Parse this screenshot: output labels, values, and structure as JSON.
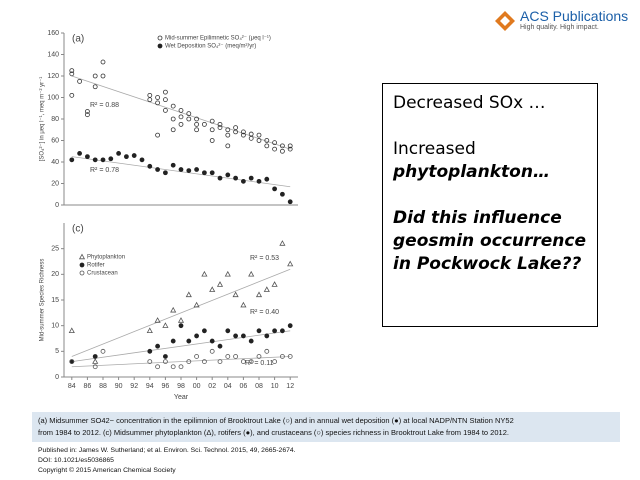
{
  "chart_data": [
    {
      "type": "scatter",
      "panel": "(a)",
      "ylabel": "[SO₄²⁻] in μeq l⁻¹, meq m⁻² yr⁻¹",
      "xlim": [
        1983,
        2013
      ],
      "ylim": [
        0,
        160
      ],
      "yticks": [
        0,
        20,
        40,
        60,
        80,
        100,
        120,
        140,
        160
      ],
      "series": [
        {
          "name": "Mid-summer Epilimnetic SO₄²⁻ (μeq l⁻¹)",
          "marker": "open-circle",
          "color": "#333333",
          "x": [
            1984,
            1984,
            1984,
            1985,
            1986,
            1986,
            1987,
            1987,
            1988,
            1988,
            1994,
            1994,
            1995,
            1995,
            1995,
            1996,
            1996,
            1996,
            1997,
            1997,
            1997,
            1998,
            1998,
            1998,
            1999,
            1999,
            2000,
            2000,
            2000,
            2001,
            2002,
            2002,
            2002,
            2003,
            2003,
            2004,
            2004,
            2004,
            2005,
            2005,
            2006,
            2006,
            2007,
            2007,
            2008,
            2008,
            2009,
            2009,
            2010,
            2010,
            2011,
            2011,
            2012,
            2012
          ],
          "values": [
            125,
            122,
            102,
            115,
            87,
            84,
            110,
            120,
            133,
            120,
            102,
            98,
            100,
            95,
            65,
            105,
            98,
            88,
            92,
            80,
            70,
            88,
            82,
            75,
            85,
            80,
            80,
            75,
            70,
            75,
            78,
            70,
            60,
            75,
            72,
            70,
            65,
            55,
            72,
            68,
            68,
            65,
            66,
            62,
            65,
            60,
            60,
            55,
            58,
            52,
            55,
            50,
            52,
            55
          ]
        },
        {
          "name": "Wet Deposition SO₄²⁻ (meq/m²/yr)",
          "marker": "filled-circle",
          "color": "#222222",
          "x": [
            1984,
            1985,
            1986,
            1987,
            1988,
            1989,
            1990,
            1991,
            1992,
            1993,
            1994,
            1995,
            1996,
            1997,
            1998,
            1999,
            2000,
            2001,
            2002,
            2003,
            2004,
            2005,
            2006,
            2007,
            2008,
            2009,
            2010,
            2011,
            2012
          ],
          "values": [
            42,
            48,
            45,
            42,
            42,
            43,
            48,
            45,
            46,
            42,
            36,
            33,
            30,
            37,
            33,
            32,
            33,
            30,
            30,
            25,
            28,
            25,
            22,
            25,
            22,
            24,
            15,
            10,
            3
          ]
        }
      ],
      "trend_lines": [
        {
          "x": [
            1984,
            2012
          ],
          "values": [
            120,
            52
          ]
        },
        {
          "x": [
            1984,
            2012
          ],
          "values": [
            45,
            17
          ]
        }
      ],
      "annotations": [
        "R² = 0.88",
        "R² = 0.78"
      ]
    },
    {
      "type": "scatter",
      "panel": "(c)",
      "ylabel": "Mid-summer Species Richness",
      "xlabel": "Year",
      "xlim": [
        1983,
        2013
      ],
      "ylim": [
        0,
        30
      ],
      "yticks": [
        0,
        5,
        10,
        15,
        20,
        25
      ],
      "xticks": [
        {
          "value": 1984,
          "label": "84"
        },
        {
          "value": 1986,
          "label": "86"
        },
        {
          "value": 1988,
          "label": "88"
        },
        {
          "value": 1990,
          "label": "90"
        },
        {
          "value": 1992,
          "label": "92"
        },
        {
          "value": 1994,
          "label": "94"
        },
        {
          "value": 1996,
          "label": "96"
        },
        {
          "value": 1998,
          "label": "98"
        },
        {
          "value": 2000,
          "label": "00"
        },
        {
          "value": 2002,
          "label": "02"
        },
        {
          "value": 2004,
          "label": "04"
        },
        {
          "value": 2006,
          "label": "06"
        },
        {
          "value": 2008,
          "label": "08"
        },
        {
          "value": 2010,
          "label": "10"
        },
        {
          "value": 2012,
          "label": "12"
        }
      ],
      "series": [
        {
          "name": "Phytoplankton",
          "marker": "open-triangle",
          "color": "#555555",
          "x": [
            1984,
            1987,
            1994,
            1995,
            1996,
            1997,
            1998,
            1999,
            2000,
            2001,
            2002,
            2003,
            2004,
            2005,
            2006,
            2007,
            2008,
            2009,
            2010,
            2011,
            2012
          ],
          "values": [
            9,
            3,
            9,
            11,
            10,
            13,
            11,
            16,
            14,
            20,
            17,
            18,
            20,
            16,
            14,
            20,
            16,
            17,
            18,
            26,
            22
          ]
        },
        {
          "name": "Rotifer",
          "marker": "filled-circle",
          "color": "#222222",
          "x": [
            1984,
            1987,
            1994,
            1995,
            1996,
            1997,
            1998,
            1999,
            2000,
            2001,
            2002,
            2003,
            2004,
            2005,
            2006,
            2007,
            2008,
            2009,
            2010,
            2011,
            2012
          ],
          "values": [
            3,
            4,
            5,
            6,
            4,
            7,
            10,
            7,
            8,
            9,
            7,
            6,
            9,
            8,
            8,
            7,
            9,
            8,
            9,
            9,
            10
          ]
        },
        {
          "name": "Crustacean",
          "marker": "open-circle",
          "color": "#555555",
          "x": [
            1984,
            1987,
            1988,
            1994,
            1995,
            1996,
            1997,
            1998,
            1999,
            2000,
            2001,
            2002,
            2003,
            2004,
            2005,
            2006,
            2007,
            2008,
            2009,
            2010,
            2011,
            2012
          ],
          "values": [
            3,
            2,
            5,
            3,
            2,
            3,
            2,
            2,
            3,
            4,
            3,
            5,
            3,
            4,
            4,
            3,
            3,
            4,
            5,
            3,
            4,
            4
          ]
        }
      ],
      "trend_lines": [
        {
          "x": [
            1984,
            2012
          ],
          "values": [
            4,
            21
          ]
        },
        {
          "x": [
            1984,
            2012
          ],
          "values": [
            3,
            9
          ]
        },
        {
          "x": [
            1984,
            2012
          ],
          "values": [
            2,
            4
          ]
        }
      ],
      "annotations": [
        "R² = 0.53",
        "R² = 0.40",
        "R² = 0.11"
      ]
    }
  ],
  "logo": {
    "title": "ACS Publications",
    "tagline": "High quality. High impact."
  },
  "slide_text": {
    "line1": "Decreased SOx …",
    "line2": "Increased",
    "line3": "phytoplankton…",
    "line4": "Did this influence",
    "line5": "geosmin occurrence",
    "line6": "in Pockwock Lake??"
  },
  "caption": [
    "(a) Midsummer SO42− concentration in the epilimnion of Brooktrout Lake (○) and in annual wet deposition (●) at local NADP/NTN Station NY52",
    "from 1984 to 2012.  (c) Midsummer phytoplankton (Δ), rotifers (●), and crustaceans (○) species richness in Brooktrout Lake from 1984 to 2012."
  ],
  "citation": [
    "Published in: James W. Sutherland; et al. Environ. Sci. Technol.  2015, 49, 2665-2674.",
    "DOI: 10.1021/es5036865",
    "Copyright © 2015 American Chemical Society"
  ]
}
